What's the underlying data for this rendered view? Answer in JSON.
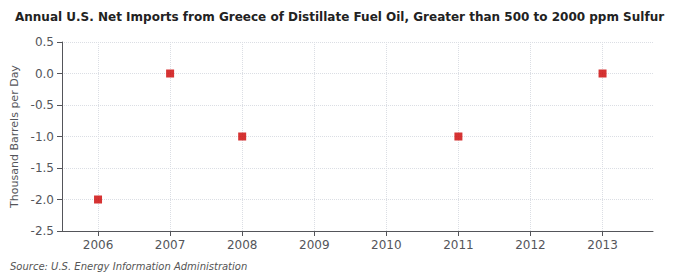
{
  "chart_data": {
    "type": "scatter",
    "title": "Annual U.S. Net Imports from Greece of Distillate Fuel Oil, Greater than 500 to 2000 ppm Sulfur",
    "ylabel": "Thousand Barrels per Day",
    "annotations": [
      "Source: U.S. Energy Information Administration"
    ],
    "x": [
      2006,
      2007,
      2008,
      2011,
      2013
    ],
    "values": [
      -2.0,
      0.0,
      -1.0,
      -1.0,
      0.0
    ],
    "color": "#cc0000",
    "marker": "square",
    "xlim": [
      2005.5,
      2013.7
    ],
    "xticks": [
      2006,
      2007,
      2008,
      2009,
      2010,
      2011,
      2012,
      2013
    ],
    "ylim": [
      -2.5,
      0.5
    ],
    "yticks": [
      -2.5,
      {
        "value": -2.0,
        "label": "-2.0"
      },
      -1.5,
      {
        "value": -1.0,
        "label": "-1.0"
      },
      -0.5,
      {
        "value": 0.0,
        "label": "0.0"
      },
      0.5
    ],
    "grid": true
  }
}
